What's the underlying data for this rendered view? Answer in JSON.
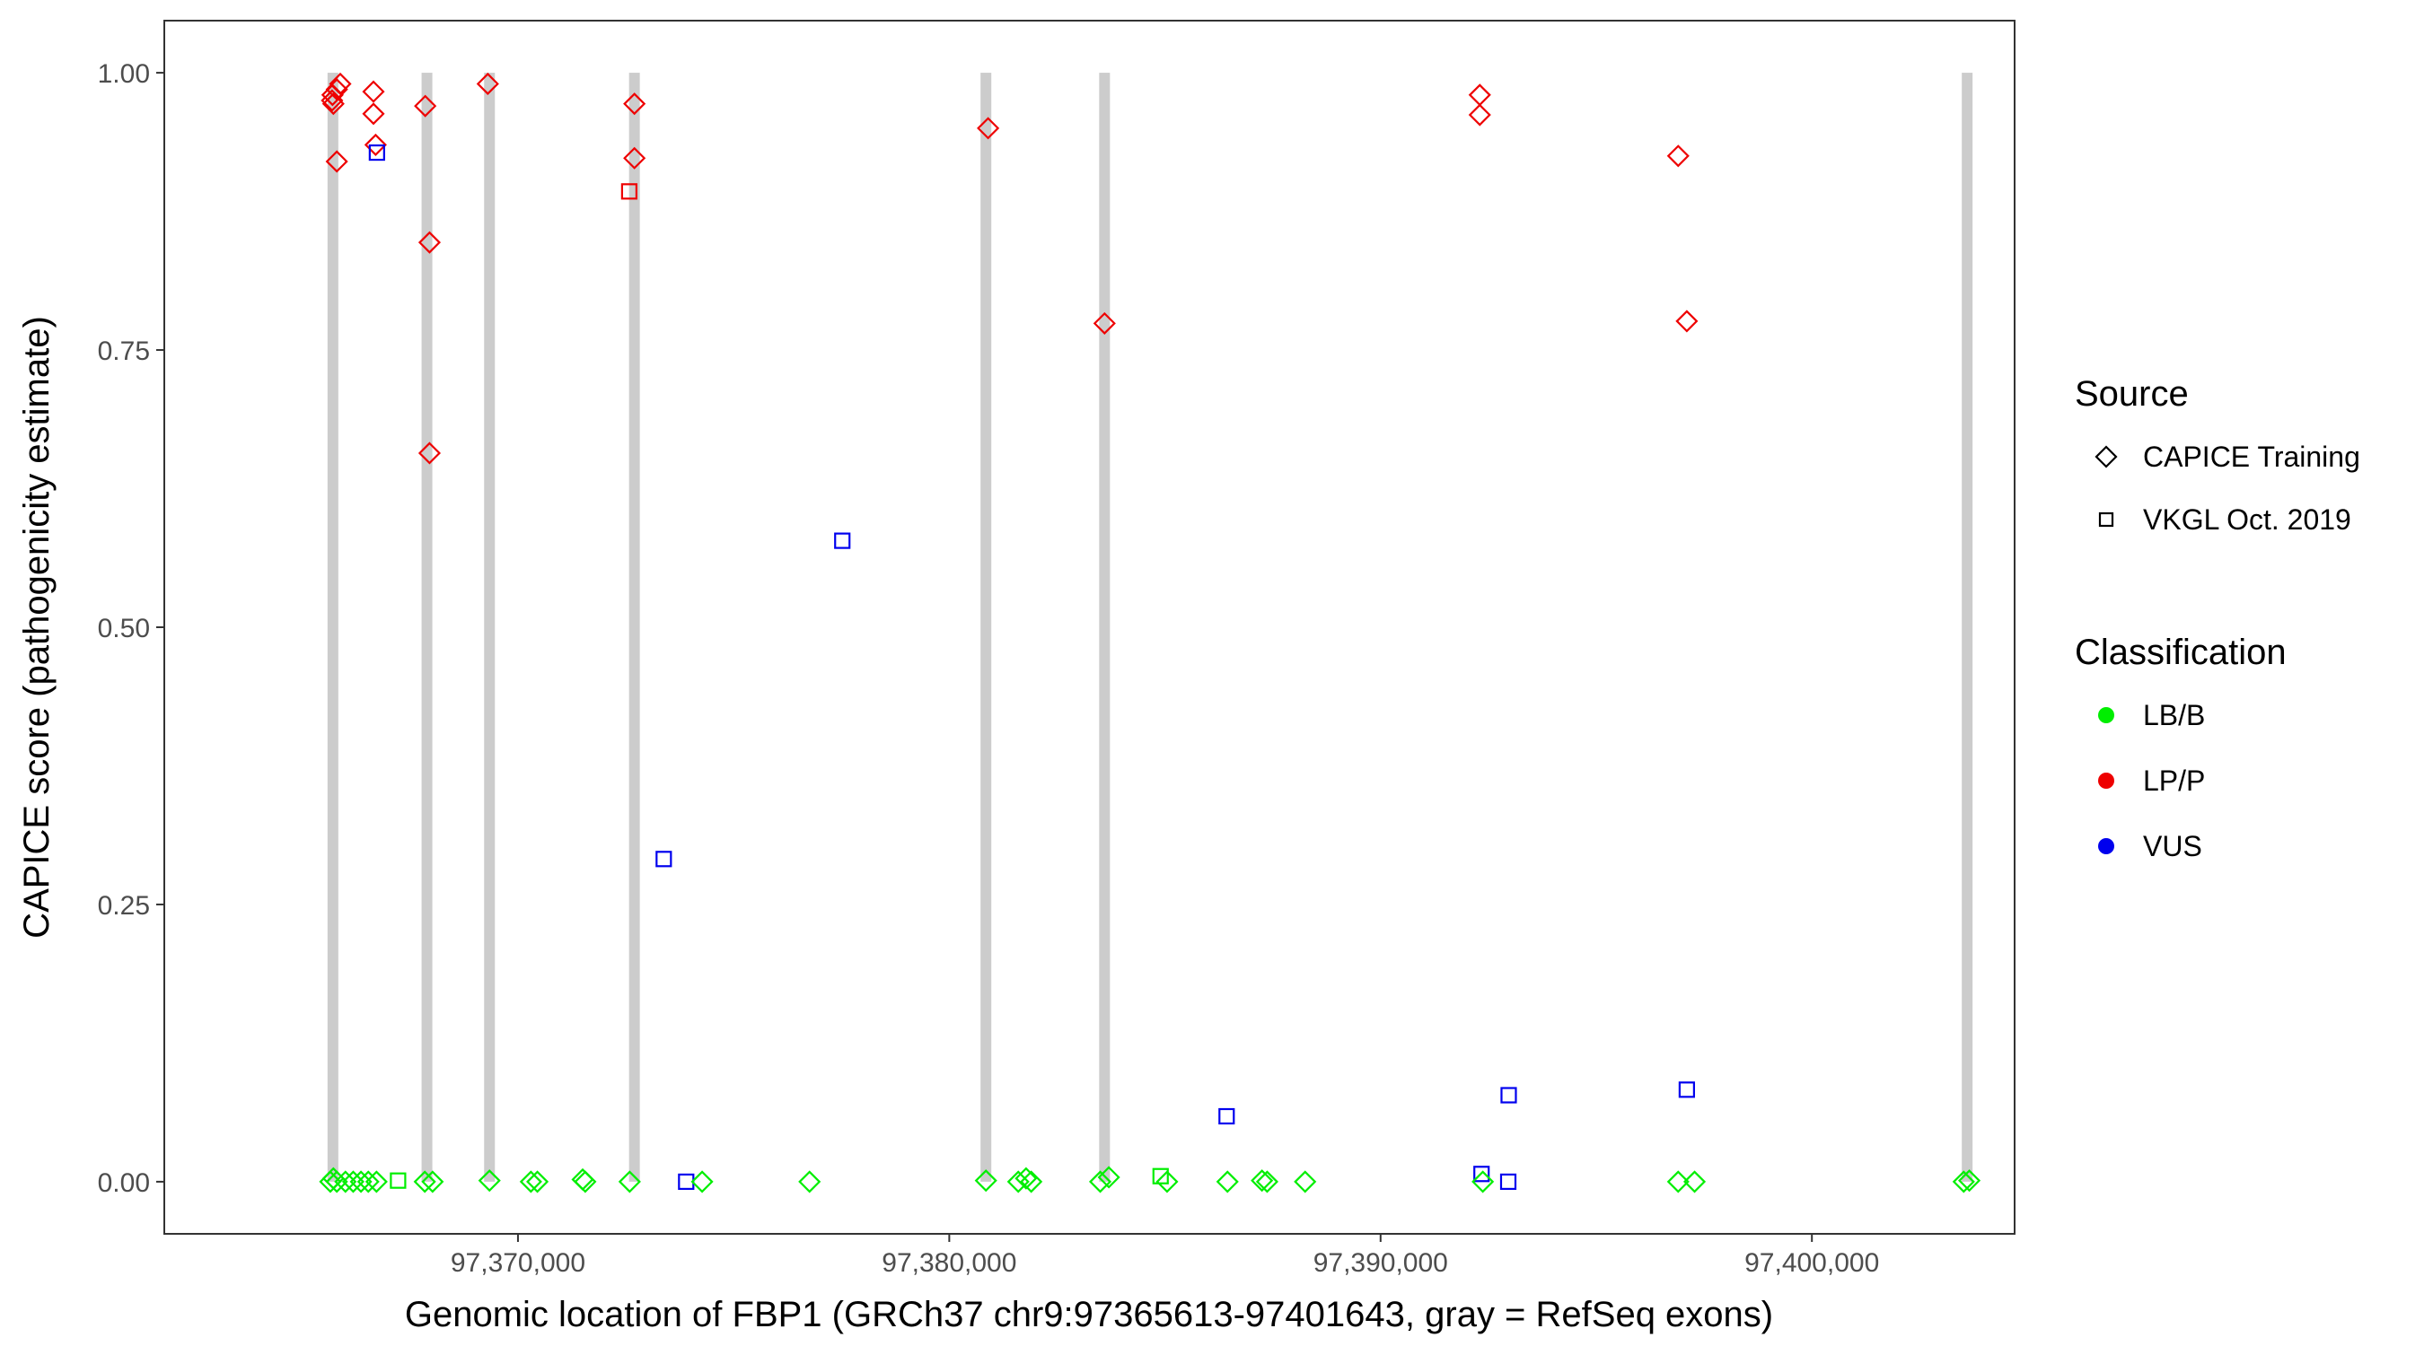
{
  "chart_data": {
    "type": "scatter",
    "title": "",
    "xlabel": "Genomic location of FBP1 (GRCh37 chr9:97365613-97401643, gray = RefSeq exons)",
    "ylabel": "CAPICE score (pathogenicity estimate)",
    "xlim": [
      97361800,
      97404700
    ],
    "ylim": [
      -0.047,
      1.047
    ],
    "x_ticks": [
      97370000,
      97380000,
      97390000,
      97400000
    ],
    "x_tick_labels": [
      "97,370,000",
      "97,380,000",
      "97,390,000",
      "97,400,000"
    ],
    "y_ticks": [
      0.0,
      0.25,
      0.5,
      0.75,
      1.0
    ],
    "y_tick_labels": [
      "0.00",
      "0.25",
      "0.50",
      "0.75",
      "1.00"
    ],
    "grid": false,
    "exons": [
      97365710,
      97367890,
      97369340,
      97372700,
      97380850,
      97383600,
      97403600
    ],
    "legend": {
      "placement": "right",
      "source_title": "Source",
      "source_items": [
        {
          "label": "CAPICE Training",
          "shape": "diamond"
        },
        {
          "label": "VKGL Oct. 2019",
          "shape": "square"
        }
      ],
      "class_title": "Classification",
      "class_items": [
        {
          "label": "LB/B",
          "color": "#00ee00"
        },
        {
          "label": "LP/P",
          "color": "#ee0000"
        },
        {
          "label": "VUS",
          "color": "#0000ee"
        }
      ]
    },
    "colors": {
      "LB/B": "#00ee00",
      "LP/P": "#ee0000",
      "VUS": "#0000ee",
      "exon": "#cccccc"
    },
    "points": [
      {
        "x": 97365690,
        "y": 0.975,
        "source": "CAPICE Training",
        "cls": "LP/P"
      },
      {
        "x": 97365700,
        "y": 0.98,
        "source": "CAPICE Training",
        "cls": "LP/P"
      },
      {
        "x": 97365720,
        "y": 0.972,
        "source": "CAPICE Training",
        "cls": "LP/P"
      },
      {
        "x": 97365800,
        "y": 0.985,
        "source": "CAPICE Training",
        "cls": "LP/P"
      },
      {
        "x": 97365880,
        "y": 0.99,
        "source": "CAPICE Training",
        "cls": "LP/P"
      },
      {
        "x": 97365800,
        "y": 0.92,
        "source": "CAPICE Training",
        "cls": "LP/P"
      },
      {
        "x": 97366650,
        "y": 0.983,
        "source": "CAPICE Training",
        "cls": "LP/P"
      },
      {
        "x": 97366650,
        "y": 0.963,
        "source": "CAPICE Training",
        "cls": "LP/P"
      },
      {
        "x": 97366700,
        "y": 0.935,
        "source": "CAPICE Training",
        "cls": "LP/P"
      },
      {
        "x": 97366730,
        "y": 0.928,
        "source": "VKGL Oct. 2019",
        "cls": "VUS"
      },
      {
        "x": 97367850,
        "y": 0.97,
        "source": "CAPICE Training",
        "cls": "LP/P"
      },
      {
        "x": 97367950,
        "y": 0.847,
        "source": "CAPICE Training",
        "cls": "LP/P"
      },
      {
        "x": 97367950,
        "y": 0.657,
        "source": "CAPICE Training",
        "cls": "LP/P"
      },
      {
        "x": 97369300,
        "y": 0.99,
        "source": "CAPICE Training",
        "cls": "LP/P"
      },
      {
        "x": 97372700,
        "y": 0.972,
        "source": "CAPICE Training",
        "cls": "LP/P"
      },
      {
        "x": 97372700,
        "y": 0.923,
        "source": "CAPICE Training",
        "cls": "LP/P"
      },
      {
        "x": 97372580,
        "y": 0.893,
        "source": "VKGL Oct. 2019",
        "cls": "LP/P"
      },
      {
        "x": 97377520,
        "y": 0.578,
        "source": "VKGL Oct. 2019",
        "cls": "VUS"
      },
      {
        "x": 97373380,
        "y": 0.291,
        "source": "VKGL Oct. 2019",
        "cls": "VUS"
      },
      {
        "x": 97380900,
        "y": 0.95,
        "source": "CAPICE Training",
        "cls": "LP/P"
      },
      {
        "x": 97383600,
        "y": 0.774,
        "source": "CAPICE Training",
        "cls": "LP/P"
      },
      {
        "x": 97392300,
        "y": 0.98,
        "source": "CAPICE Training",
        "cls": "LP/P"
      },
      {
        "x": 97392300,
        "y": 0.962,
        "source": "CAPICE Training",
        "cls": "LP/P"
      },
      {
        "x": 97396900,
        "y": 0.925,
        "source": "CAPICE Training",
        "cls": "LP/P"
      },
      {
        "x": 97397100,
        "y": 0.776,
        "source": "CAPICE Training",
        "cls": "LP/P"
      },
      {
        "x": 97386430,
        "y": 0.059,
        "source": "VKGL Oct. 2019",
        "cls": "VUS"
      },
      {
        "x": 97392970,
        "y": 0.078,
        "source": "VKGL Oct. 2019",
        "cls": "VUS"
      },
      {
        "x": 97397100,
        "y": 0.083,
        "source": "VKGL Oct. 2019",
        "cls": "VUS"
      },
      {
        "x": 97392340,
        "y": 0.007,
        "source": "VKGL Oct. 2019",
        "cls": "VUS"
      },
      {
        "x": 97392960,
        "y": 0.0,
        "source": "VKGL Oct. 2019",
        "cls": "VUS"
      },
      {
        "x": 97373900,
        "y": 0.0,
        "source": "VKGL Oct. 2019",
        "cls": "VUS"
      },
      {
        "x": 97365650,
        "y": 0.0,
        "source": "CAPICE Training",
        "cls": "LB/B"
      },
      {
        "x": 97365720,
        "y": 0.003,
        "source": "CAPICE Training",
        "cls": "LB/B"
      },
      {
        "x": 97365800,
        "y": 0.0,
        "source": "CAPICE Training",
        "cls": "LB/B"
      },
      {
        "x": 97366000,
        "y": 0.0,
        "source": "CAPICE Training",
        "cls": "LB/B"
      },
      {
        "x": 97366180,
        "y": 0.0,
        "source": "CAPICE Training",
        "cls": "LB/B"
      },
      {
        "x": 97366360,
        "y": 0.0,
        "source": "CAPICE Training",
        "cls": "LB/B"
      },
      {
        "x": 97366530,
        "y": 0.0,
        "source": "CAPICE Training",
        "cls": "LB/B"
      },
      {
        "x": 97366720,
        "y": 0.0,
        "source": "CAPICE Training",
        "cls": "LB/B"
      },
      {
        "x": 97367220,
        "y": 0.001,
        "source": "VKGL Oct. 2019",
        "cls": "LB/B"
      },
      {
        "x": 97367840,
        "y": 0.0,
        "source": "CAPICE Training",
        "cls": "LB/B"
      },
      {
        "x": 97368020,
        "y": 0.0,
        "source": "CAPICE Training",
        "cls": "LB/B"
      },
      {
        "x": 97369340,
        "y": 0.001,
        "source": "CAPICE Training",
        "cls": "LB/B"
      },
      {
        "x": 97370300,
        "y": 0.0,
        "source": "CAPICE Training",
        "cls": "LB/B"
      },
      {
        "x": 97370450,
        "y": 0.0,
        "source": "CAPICE Training",
        "cls": "LB/B"
      },
      {
        "x": 97371500,
        "y": 0.002,
        "source": "CAPICE Training",
        "cls": "LB/B"
      },
      {
        "x": 97371560,
        "y": 0.0,
        "source": "CAPICE Training",
        "cls": "LB/B"
      },
      {
        "x": 97372590,
        "y": 0.0,
        "source": "CAPICE Training",
        "cls": "LB/B"
      },
      {
        "x": 97374270,
        "y": 0.0,
        "source": "CAPICE Training",
        "cls": "LB/B"
      },
      {
        "x": 97376760,
        "y": 0.0,
        "source": "CAPICE Training",
        "cls": "LB/B"
      },
      {
        "x": 97380850,
        "y": 0.001,
        "source": "CAPICE Training",
        "cls": "LB/B"
      },
      {
        "x": 97381600,
        "y": 0.0,
        "source": "CAPICE Training",
        "cls": "LB/B"
      },
      {
        "x": 97381780,
        "y": 0.003,
        "source": "CAPICE Training",
        "cls": "LB/B"
      },
      {
        "x": 97381900,
        "y": 0.0,
        "source": "CAPICE Training",
        "cls": "LB/B"
      },
      {
        "x": 97383500,
        "y": 0.0,
        "source": "CAPICE Training",
        "cls": "LB/B"
      },
      {
        "x": 97383700,
        "y": 0.004,
        "source": "CAPICE Training",
        "cls": "LB/B"
      },
      {
        "x": 97384900,
        "y": 0.005,
        "source": "VKGL Oct. 2019",
        "cls": "LB/B"
      },
      {
        "x": 97385050,
        "y": 0.0,
        "source": "CAPICE Training",
        "cls": "LB/B"
      },
      {
        "x": 97386450,
        "y": 0.0,
        "source": "CAPICE Training",
        "cls": "LB/B"
      },
      {
        "x": 97387250,
        "y": 0.001,
        "source": "CAPICE Training",
        "cls": "LB/B"
      },
      {
        "x": 97387370,
        "y": 0.0,
        "source": "CAPICE Training",
        "cls": "LB/B"
      },
      {
        "x": 97388250,
        "y": 0.0,
        "source": "CAPICE Training",
        "cls": "LB/B"
      },
      {
        "x": 97392370,
        "y": 0.0,
        "source": "CAPICE Training",
        "cls": "LB/B"
      },
      {
        "x": 97396900,
        "y": 0.0,
        "source": "CAPICE Training",
        "cls": "LB/B"
      },
      {
        "x": 97397280,
        "y": 0.0,
        "source": "CAPICE Training",
        "cls": "LB/B"
      },
      {
        "x": 97403520,
        "y": 0.0,
        "source": "CAPICE Training",
        "cls": "LB/B"
      },
      {
        "x": 97403650,
        "y": 0.001,
        "source": "CAPICE Training",
        "cls": "LB/B"
      }
    ]
  }
}
